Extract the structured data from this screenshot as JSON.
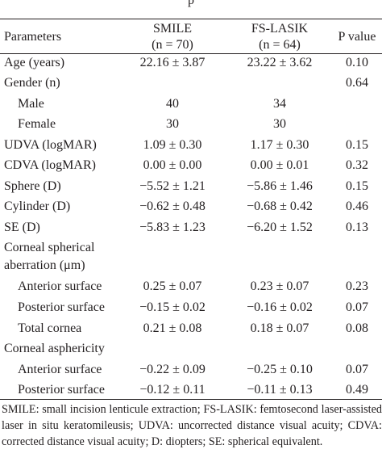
{
  "caption_fragment": "p",
  "header": {
    "parameters": "Parameters",
    "smile_name": "SMILE",
    "smile_n": "(n = 70)",
    "fs_name": "FS-LASIK",
    "fs_n": "(n = 64)",
    "p_value": "P value"
  },
  "rows": [
    {
      "label": "Age (years)",
      "smile": "22.16 ± 3.87",
      "fs": "23.22 ± 3.62",
      "p": "0.10"
    },
    {
      "label": "Gender (n)",
      "smile": "",
      "fs": "",
      "p": "0.64"
    },
    {
      "label": "Male",
      "smile": "40",
      "fs": "34",
      "p": ""
    },
    {
      "label": "Female",
      "smile": "30",
      "fs": "30",
      "p": ""
    },
    {
      "label": "UDVA (logMAR)",
      "smile": "1.09 ± 0.30",
      "fs": "1.17 ± 0.30",
      "p": "0.15"
    },
    {
      "label": "CDVA (logMAR)",
      "smile": "0.00 ± 0.00",
      "fs": "0.00 ± 0.01",
      "p": "0.32"
    },
    {
      "label": "Sphere (D)",
      "smile": "−5.52 ± 1.21",
      "fs": "−5.86 ± 1.46",
      "p": "0.15"
    },
    {
      "label": "Cylinder (D)",
      "smile": "−0.62 ± 0.48",
      "fs": "−0.68 ± 0.42",
      "p": "0.46"
    },
    {
      "label": "SE (D)",
      "smile": "−5.83 ± 1.23",
      "fs": "−6.20 ± 1.52",
      "p": "0.13"
    },
    {
      "label": "Corneal spherical",
      "smile": "",
      "fs": "",
      "p": ""
    },
    {
      "label": "aberration (μm)",
      "smile": "",
      "fs": "",
      "p": ""
    },
    {
      "label": "Anterior surface",
      "smile": "0.25 ± 0.07",
      "fs": "0.23 ± 0.07",
      "p": "0.23"
    },
    {
      "label": "Posterior surface",
      "smile": "−0.15 ± 0.02",
      "fs": "−0.16 ± 0.02",
      "p": "0.07"
    },
    {
      "label": "Total cornea",
      "smile": "0.21 ± 0.08",
      "fs": "0.18 ± 0.07",
      "p": "0.08"
    },
    {
      "label": "Corneal asphericity",
      "smile": "",
      "fs": "",
      "p": ""
    },
    {
      "label": "Anterior surface",
      "smile": "−0.22 ± 0.09",
      "fs": "−0.25 ± 0.10",
      "p": "0.07"
    },
    {
      "label": "Posterior surface",
      "smile": "−0.12 ± 0.11",
      "fs": "−0.11 ± 0.13",
      "p": "0.49"
    }
  ],
  "footnote": "SMILE: small incision lenticule extraction; FS-LASIK: femtosecond laser-assisted laser in situ keratomileusis; UDVA: uncorrected distance visual acuity; CDVA: corrected distance visual acuity; D: diopters; SE: spherical equivalent."
}
